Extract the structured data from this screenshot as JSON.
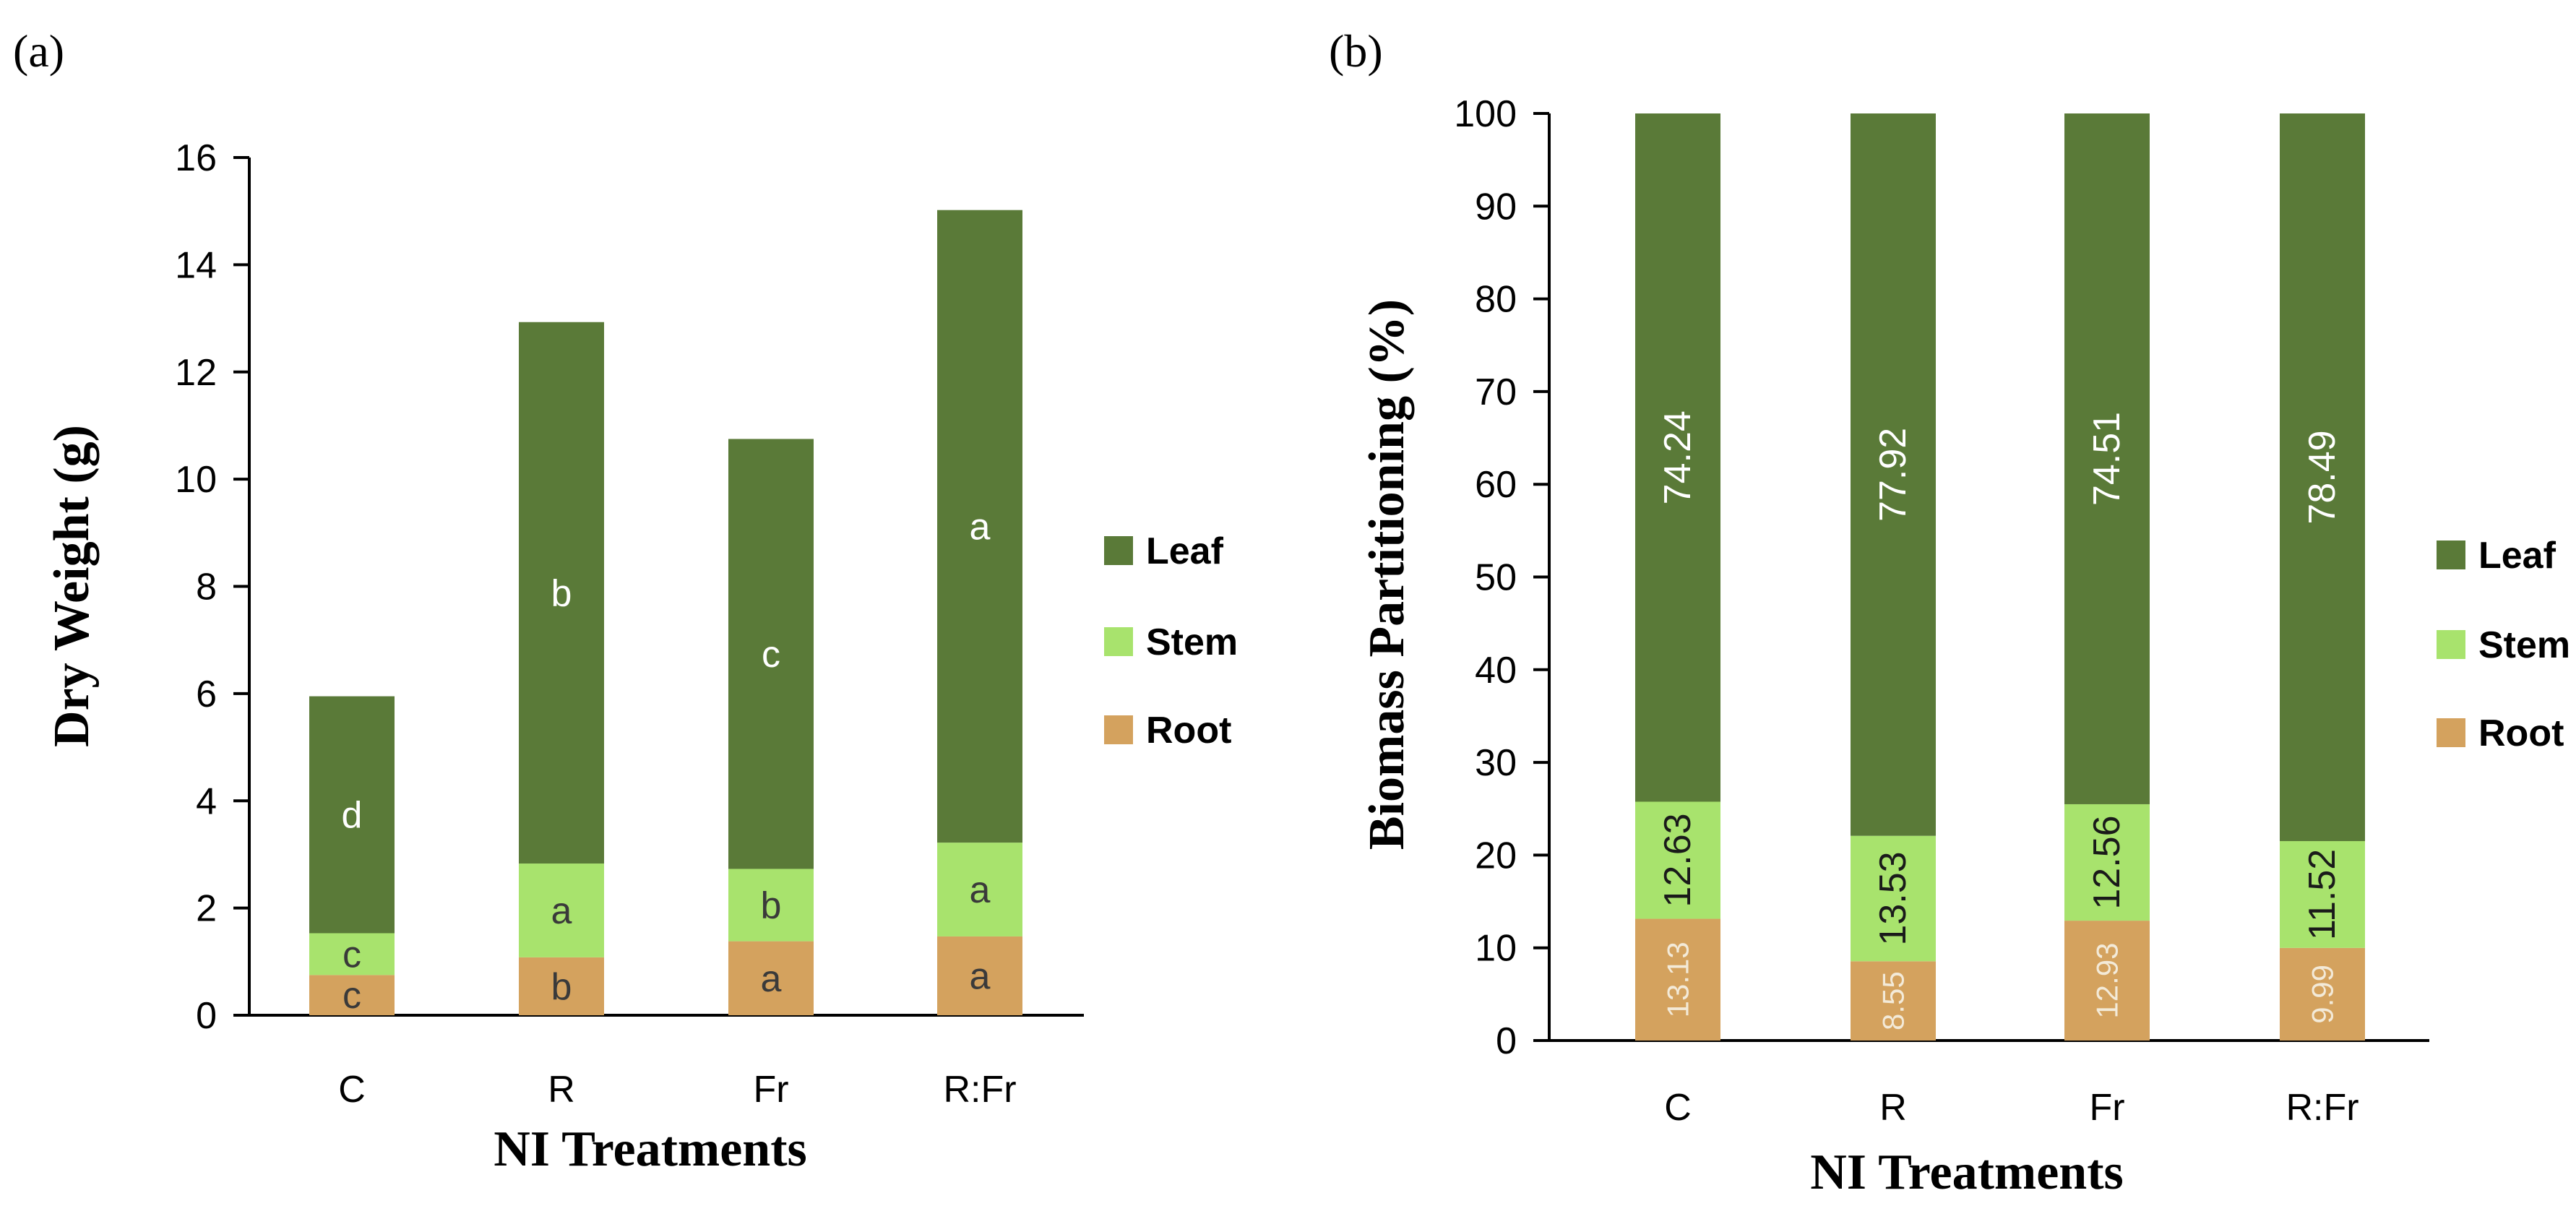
{
  "colors": {
    "leaf": "#5a7a38",
    "stem": "#a8e36d",
    "root": "#d4a25e",
    "axis": "#000000",
    "label_light": "#ffffff",
    "label_dark": "#3a3a3a",
    "root_label_b": "#f3ead8"
  },
  "chart_data": [
    {
      "type": "bar",
      "stacked": true,
      "panel_label": "(a)",
      "title": "",
      "xlabel": "NI Treatments",
      "ylabel": "Dry Weight (g)",
      "ylim": [
        0,
        16
      ],
      "yticks": [
        "0",
        "2",
        "4",
        "6",
        "8",
        "10",
        "12",
        "14",
        "16"
      ],
      "categories": [
        "C",
        "R",
        "Fr",
        "R:Fr"
      ],
      "legend": [
        "Leaf",
        "Stem",
        "Root"
      ],
      "legend_position": "right",
      "series": [
        {
          "name": "Root",
          "values": [
            0.75,
            1.08,
            1.38,
            1.47
          ],
          "labels": [
            "c",
            "b",
            "a",
            "a"
          ]
        },
        {
          "name": "Stem",
          "values": [
            0.78,
            1.75,
            1.35,
            1.75
          ],
          "labels": [
            "c",
            "a",
            "b",
            "a"
          ]
        },
        {
          "name": "Leaf",
          "values": [
            4.42,
            10.1,
            8.02,
            11.8
          ],
          "labels": [
            "d",
            "b",
            "c",
            "a"
          ]
        }
      ]
    },
    {
      "type": "bar",
      "stacked": true,
      "panel_label": "(b)",
      "title": "",
      "xlabel": "NI Treatments",
      "ylabel": "Biomass Partitioning (%)",
      "ylim": [
        0,
        100
      ],
      "yticks": [
        "0",
        "10",
        "20",
        "30",
        "40",
        "50",
        "60",
        "70",
        "80",
        "90",
        "100"
      ],
      "categories": [
        "C",
        "R",
        "Fr",
        "R:Fr"
      ],
      "legend": [
        "Leaf",
        "Stem",
        "Root"
      ],
      "legend_position": "right",
      "series": [
        {
          "name": "Root",
          "values": [
            13.13,
            8.55,
            12.93,
            9.99
          ],
          "labels": [
            "13.13",
            "8.55",
            "12.93",
            "9.99"
          ]
        },
        {
          "name": "Stem",
          "values": [
            12.63,
            13.53,
            12.56,
            11.52
          ],
          "labels": [
            "12.63",
            "13.53",
            "12.56",
            "11.52"
          ]
        },
        {
          "name": "Leaf",
          "values": [
            74.24,
            77.92,
            74.51,
            78.49
          ],
          "labels": [
            "74.24",
            "77.92",
            "74.51",
            "78.49"
          ]
        }
      ]
    }
  ]
}
